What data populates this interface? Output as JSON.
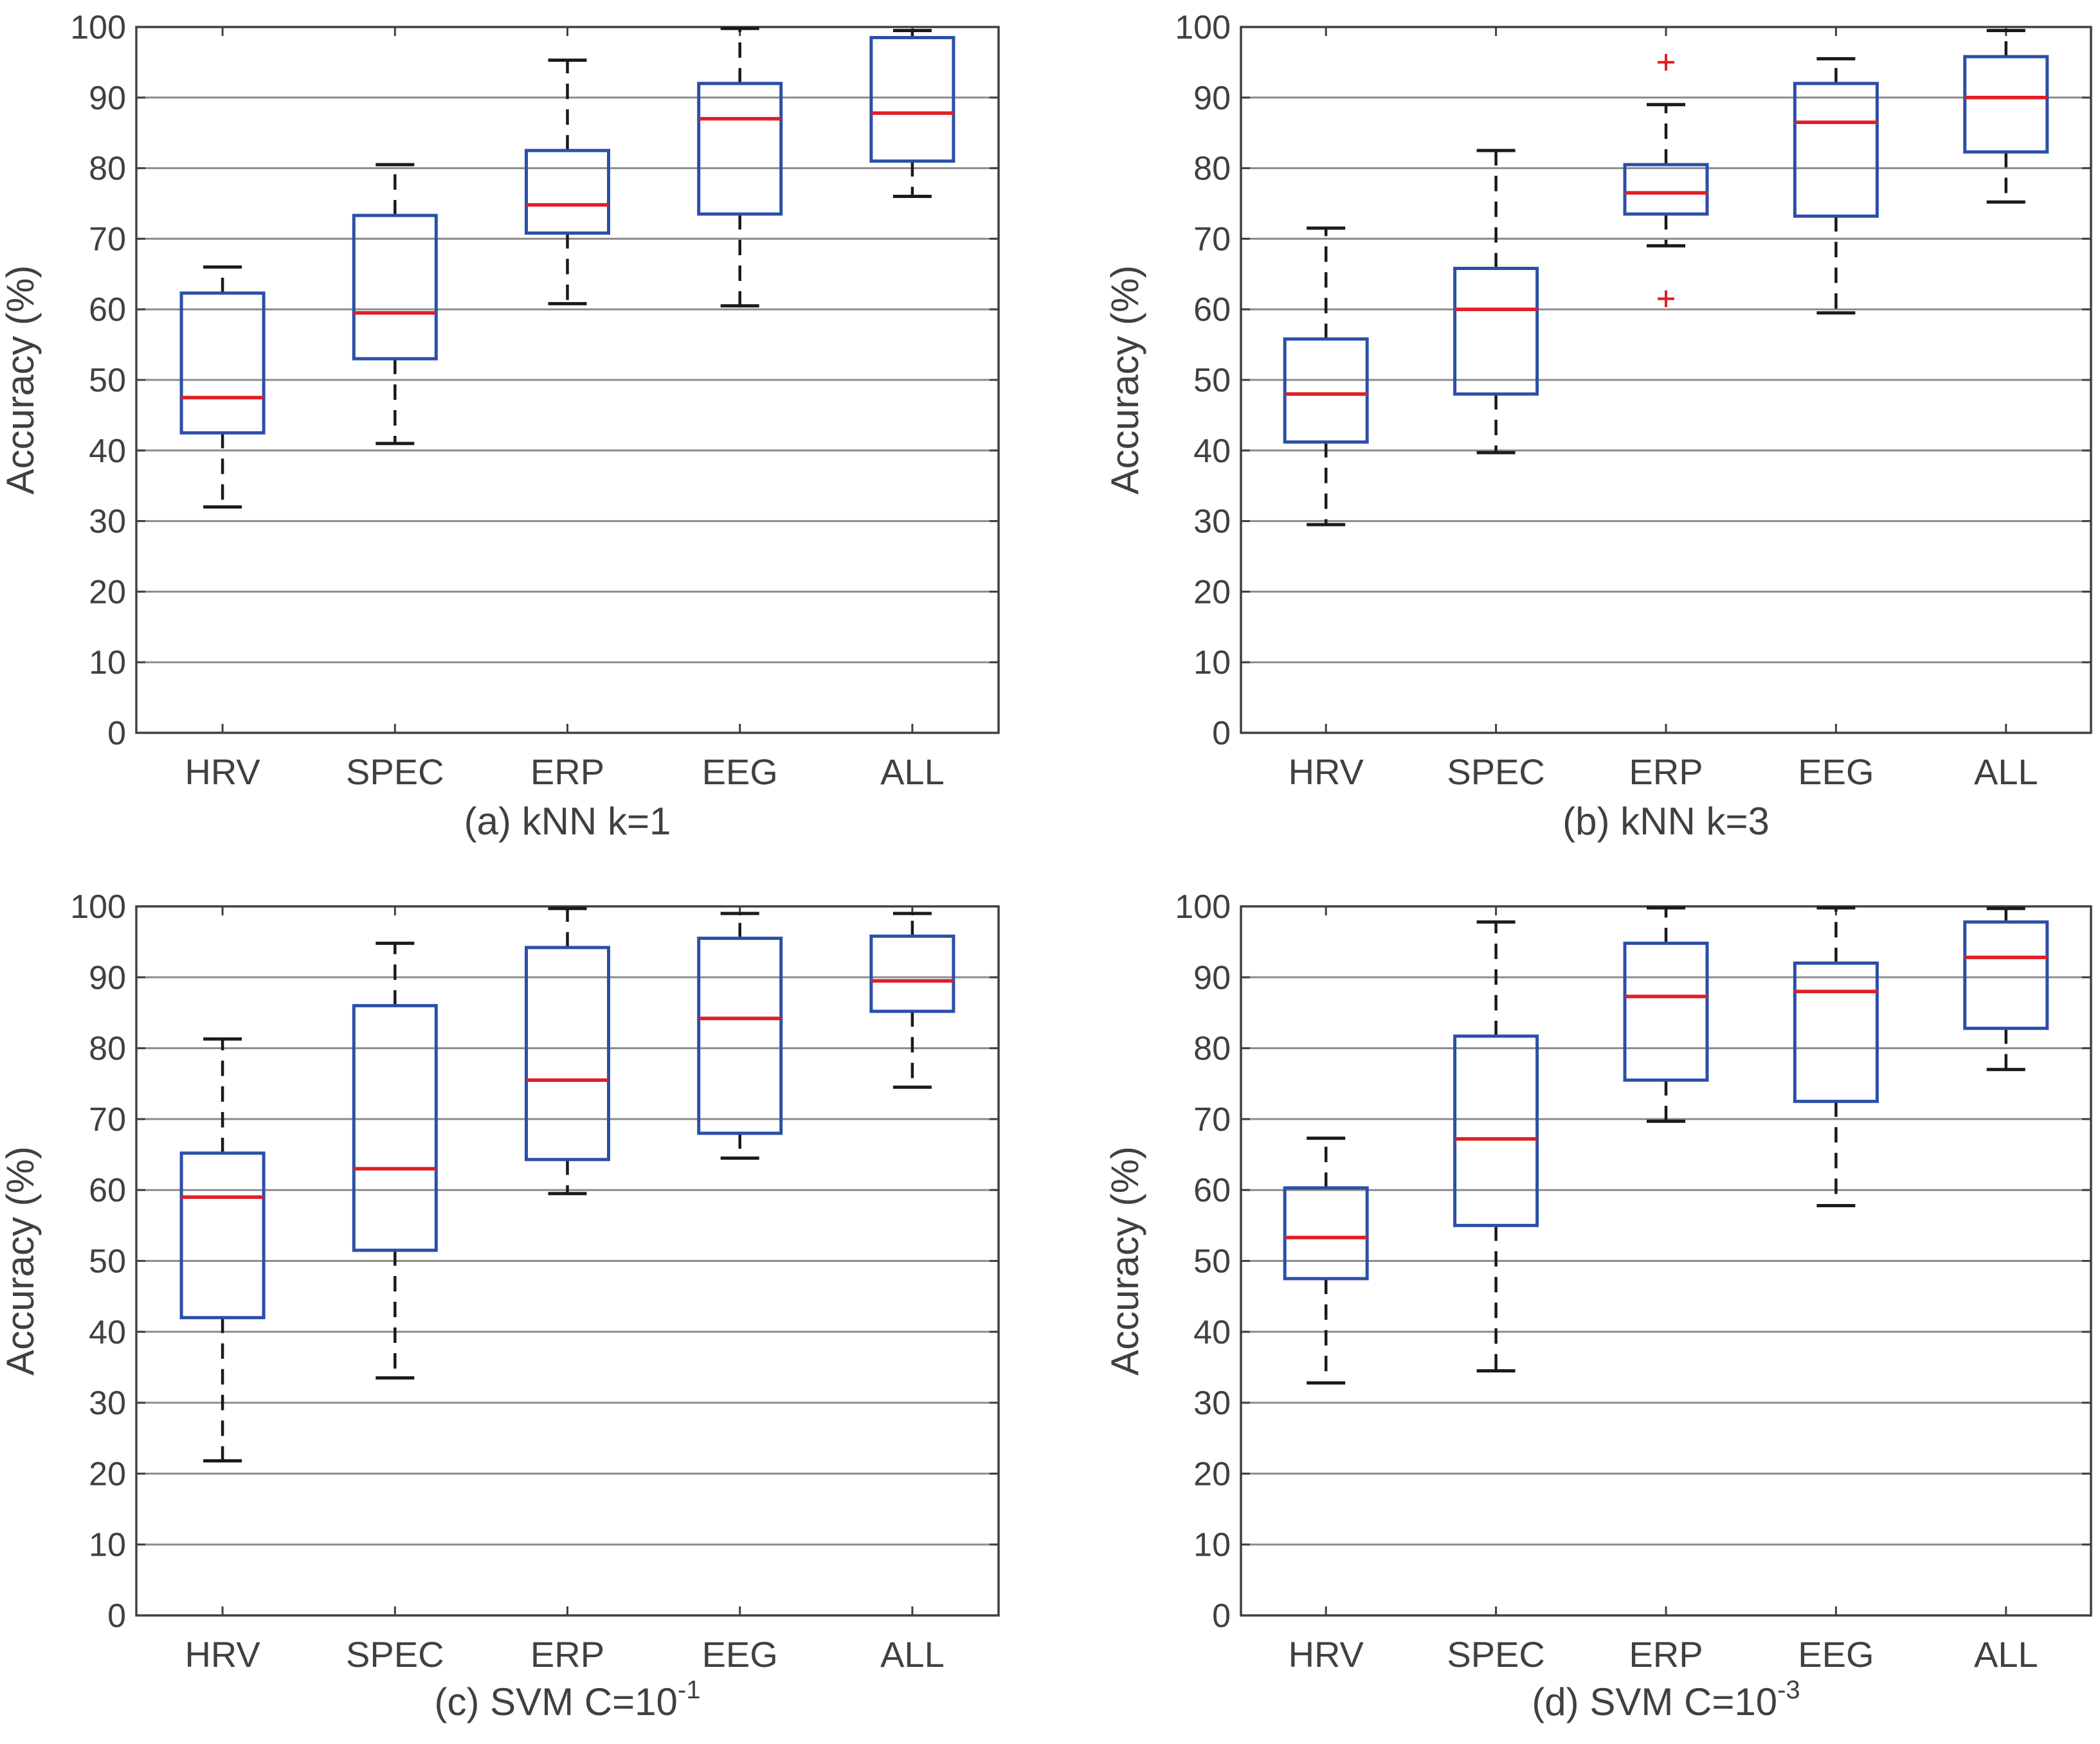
{
  "figure": {
    "colors": {
      "box": "#2b4fa8",
      "median": "#e01f26",
      "whisker": "#1a1a1a",
      "outlier": "#e01f26",
      "axes": "#404040",
      "grid": "#8c8c8c",
      "text": "#404040"
    }
  },
  "chart_data": [
    {
      "type": "box",
      "caption": "(a) kNN k=1",
      "ylabel": "Accuracy (%)",
      "ylim": [
        0,
        100
      ],
      "yticks": [
        0,
        10,
        20,
        30,
        40,
        50,
        60,
        70,
        80,
        90,
        100
      ],
      "grid": "horizontal",
      "categories": [
        "HRV",
        "SPEC",
        "ERP",
        "EEG",
        "ALL"
      ],
      "boxes": [
        {
          "min": 32,
          "q1": 42.5,
          "median": 47.5,
          "q3": 62.3,
          "max": 66,
          "outliers": []
        },
        {
          "min": 41,
          "q1": 53,
          "median": 59.5,
          "q3": 73.3,
          "max": 80.5,
          "outliers": []
        },
        {
          "min": 60.8,
          "q1": 70.8,
          "median": 74.8,
          "q3": 82.5,
          "max": 95.3,
          "outliers": []
        },
        {
          "min": 60.5,
          "q1": 73.5,
          "median": 87,
          "q3": 92,
          "max": 99.8,
          "outliers": []
        },
        {
          "min": 76,
          "q1": 81,
          "median": 87.8,
          "q3": 98.5,
          "max": 99.5,
          "outliers": []
        }
      ]
    },
    {
      "type": "box",
      "caption": "(b) kNN k=3",
      "ylabel": "Accuracy (%)",
      "ylim": [
        0,
        100
      ],
      "yticks": [
        0,
        10,
        20,
        30,
        40,
        50,
        60,
        70,
        80,
        90,
        100
      ],
      "grid": "horizontal",
      "categories": [
        "HRV",
        "SPEC",
        "ERP",
        "EEG",
        "ALL"
      ],
      "boxes": [
        {
          "min": 29.5,
          "q1": 41.2,
          "median": 48,
          "q3": 55.8,
          "max": 71.5,
          "outliers": []
        },
        {
          "min": 39.7,
          "q1": 48,
          "median": 60,
          "q3": 65.8,
          "max": 82.5,
          "outliers": []
        },
        {
          "min": 69,
          "q1": 73.5,
          "median": 76.5,
          "q3": 80.5,
          "max": 89,
          "outliers": [
            95,
            61.5
          ]
        },
        {
          "min": 59.5,
          "q1": 73.2,
          "median": 86.5,
          "q3": 92,
          "max": 95.5,
          "outliers": []
        },
        {
          "min": 75.2,
          "q1": 82.3,
          "median": 90,
          "q3": 95.8,
          "max": 99.5,
          "outliers": []
        }
      ]
    },
    {
      "type": "box",
      "caption": "(c) SVM C=10",
      "caption_sup": "-1",
      "ylabel": "Accuracy (%)",
      "ylim": [
        0,
        100
      ],
      "yticks": [
        0,
        10,
        20,
        30,
        40,
        50,
        60,
        70,
        80,
        90,
        100
      ],
      "grid": "horizontal",
      "categories": [
        "HRV",
        "SPEC",
        "ERP",
        "EEG",
        "ALL"
      ],
      "boxes": [
        {
          "min": 21.8,
          "q1": 42,
          "median": 59,
          "q3": 65.2,
          "max": 81.3,
          "outliers": []
        },
        {
          "min": 33.5,
          "q1": 51.5,
          "median": 63,
          "q3": 86,
          "max": 94.8,
          "outliers": []
        },
        {
          "min": 59.5,
          "q1": 64.3,
          "median": 75.5,
          "q3": 94.2,
          "max": 99.7,
          "outliers": []
        },
        {
          "min": 64.5,
          "q1": 68,
          "median": 84.2,
          "q3": 95.5,
          "max": 99,
          "outliers": []
        },
        {
          "min": 74.5,
          "q1": 85.2,
          "median": 89.5,
          "q3": 95.8,
          "max": 99,
          "outliers": []
        }
      ]
    },
    {
      "type": "box",
      "caption": "(d) SVM C=10",
      "caption_sup": "-3",
      "ylabel": "Accuracy (%)",
      "ylim": [
        0,
        100
      ],
      "yticks": [
        0,
        10,
        20,
        30,
        40,
        50,
        60,
        70,
        80,
        90,
        100
      ],
      "grid": "horizontal",
      "categories": [
        "HRV",
        "SPEC",
        "ERP",
        "EEG",
        "ALL"
      ],
      "boxes": [
        {
          "min": 32.8,
          "q1": 47.5,
          "median": 53.3,
          "q3": 60.3,
          "max": 67.3,
          "outliers": []
        },
        {
          "min": 34.5,
          "q1": 55,
          "median": 67.2,
          "q3": 81.7,
          "max": 97.8,
          "outliers": []
        },
        {
          "min": 69.7,
          "q1": 75.5,
          "median": 87.3,
          "q3": 94.8,
          "max": 99.8,
          "outliers": []
        },
        {
          "min": 57.8,
          "q1": 72.5,
          "median": 88,
          "q3": 92,
          "max": 99.8,
          "outliers": []
        },
        {
          "min": 77,
          "q1": 82.8,
          "median": 92.8,
          "q3": 97.8,
          "max": 99.7,
          "outliers": []
        }
      ]
    }
  ]
}
